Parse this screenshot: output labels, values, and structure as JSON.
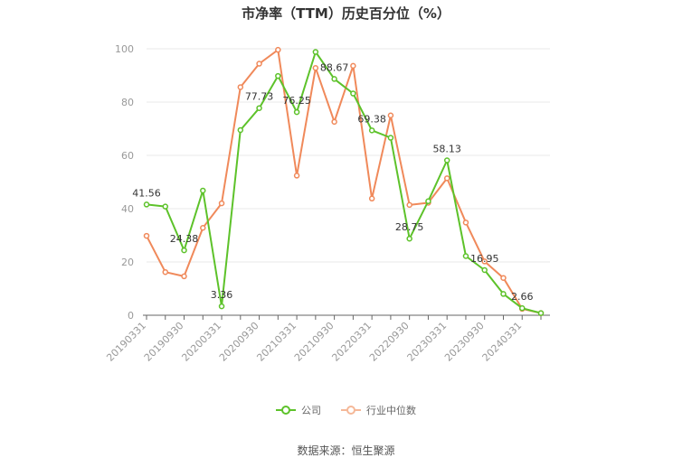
{
  "title": "市净率（TTM）历史百分位（%）",
  "source_note": "数据来源：恒生聚源",
  "colors": {
    "company": "#5dc22a",
    "industry": "#f0895a",
    "axis": "#999999",
    "grid": "#e9e9e9"
  },
  "chart_data": {
    "type": "line",
    "title": "市净率（TTM）历史百分位（%）",
    "ylim": [
      0,
      100
    ],
    "yticks": [
      0,
      20,
      40,
      60,
      80,
      100
    ],
    "grid": true,
    "legend_position": "bottom",
    "x_tick_labels": [
      "20190331",
      "20190930",
      "20200331",
      "20200930",
      "20210331",
      "20210930",
      "20220331",
      "20220930",
      "20230331",
      "20230930",
      "20240331"
    ],
    "x": [
      "20190331",
      "20190630",
      "20190930",
      "20191231",
      "20200331",
      "20200630",
      "20200930",
      "20201231",
      "20210331",
      "20210630",
      "20210930",
      "20211231",
      "20220331",
      "20220630",
      "20220930",
      "20221231",
      "20230331",
      "20230630",
      "20230930",
      "20231231",
      "20240331",
      "20240630"
    ],
    "series": [
      {
        "name": "公司",
        "values": [
          41.56,
          40.8,
          24.38,
          46.8,
          3.36,
          69.5,
          77.73,
          89.8,
          76.25,
          98.8,
          88.67,
          83.2,
          69.38,
          66.6,
          28.75,
          42.8,
          58.13,
          22.2,
          16.95,
          8.0,
          2.66,
          0.8
        ]
      },
      {
        "name": "行业中位数",
        "values": [
          29.8,
          16.2,
          14.6,
          32.8,
          42.0,
          85.6,
          94.4,
          99.6,
          52.4,
          92.8,
          72.6,
          93.6,
          43.8,
          75.0,
          41.4,
          42.2,
          51.4,
          34.8,
          20.2,
          14.0,
          2.4,
          0.8
        ]
      }
    ],
    "data_labels": [
      {
        "series": "公司",
        "index": 0,
        "text": "41.56"
      },
      {
        "series": "公司",
        "index": 2,
        "text": "24.38"
      },
      {
        "series": "公司",
        "index": 4,
        "text": "3.36"
      },
      {
        "series": "公司",
        "index": 6,
        "text": "77.73"
      },
      {
        "series": "公司",
        "index": 8,
        "text": "76.25"
      },
      {
        "series": "公司",
        "index": 10,
        "text": "88.67"
      },
      {
        "series": "公司",
        "index": 12,
        "text": "69.38"
      },
      {
        "series": "公司",
        "index": 14,
        "text": "28.75"
      },
      {
        "series": "公司",
        "index": 16,
        "text": "58.13"
      },
      {
        "series": "公司",
        "index": 18,
        "text": "16.95"
      },
      {
        "series": "公司",
        "index": 20,
        "text": "2.66"
      }
    ]
  }
}
